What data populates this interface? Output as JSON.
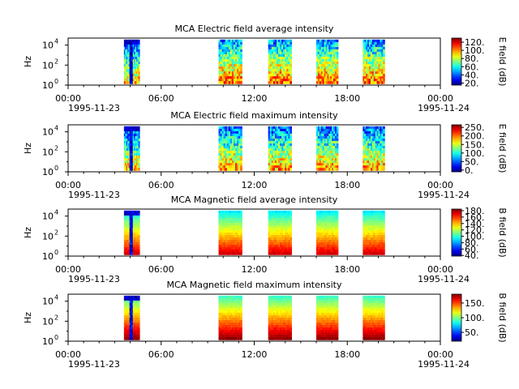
{
  "chart_data": [
    {
      "type": "heatmap",
      "title": "MCA  Electric field average intensity",
      "ylabel": "Hz",
      "colorbar_label": "E field (dB)",
      "colorbar_ticks": [
        "20.",
        "40.",
        "60.",
        "80.",
        "100.",
        "120."
      ],
      "colorbar_range": [
        15,
        130
      ],
      "y_ticks": [
        "10",
        "10",
        "10"
      ],
      "y_tick_exponents": [
        "0",
        "2",
        "4"
      ],
      "ylim_log10": [
        0,
        4.7
      ],
      "x_ticks": [
        "00:00",
        "06:00",
        "12:00",
        "18:00",
        "00:00"
      ],
      "x_date_left": "1995-11-23",
      "x_date_right": "1995-11-24",
      "xlim_hours": [
        0,
        24
      ],
      "segments": [
        {
          "start_hour": 3.6,
          "end_hour": 4.6,
          "mean_level": 65
        },
        {
          "start_hour": 9.7,
          "end_hour": 11.2,
          "mean_level": 75
        },
        {
          "start_hour": 12.9,
          "end_hour": 14.4,
          "mean_level": 75
        },
        {
          "start_hour": 16.0,
          "end_hour": 17.4,
          "mean_level": 75
        },
        {
          "start_hour": 19.0,
          "end_hour": 20.4,
          "mean_level": 75
        }
      ]
    },
    {
      "type": "heatmap",
      "title": "MCA  Electric field maximum intensity",
      "ylabel": "Hz",
      "colorbar_label": "E field (dB)",
      "colorbar_ticks": [
        "0.",
        "50.",
        "100.",
        "150.",
        "200.",
        "250."
      ],
      "colorbar_range": [
        -10,
        265
      ],
      "y_ticks": [
        "10",
        "10",
        "10"
      ],
      "y_tick_exponents": [
        "0",
        "2",
        "4"
      ],
      "ylim_log10": [
        0,
        4.7
      ],
      "x_ticks": [
        "00:00",
        "06:00",
        "12:00",
        "18:00",
        "00:00"
      ],
      "x_date_left": "1995-11-23",
      "x_date_right": "1995-11-24",
      "xlim_hours": [
        0,
        24
      ],
      "segments": [
        {
          "start_hour": 3.6,
          "end_hour": 4.6,
          "mean_level": 110
        },
        {
          "start_hour": 9.7,
          "end_hour": 11.2,
          "mean_level": 120
        },
        {
          "start_hour": 12.9,
          "end_hour": 14.4,
          "mean_level": 120
        },
        {
          "start_hour": 16.0,
          "end_hour": 17.4,
          "mean_level": 120
        },
        {
          "start_hour": 19.0,
          "end_hour": 20.4,
          "mean_level": 120
        }
      ]
    },
    {
      "type": "heatmap",
      "title": "MCA  Magnetic field average intensity",
      "ylabel": "Hz",
      "colorbar_label": "B field (dB)",
      "colorbar_ticks": [
        "40.",
        "60.",
        "80.",
        "100.",
        "120.",
        "140.",
        "160.",
        "180."
      ],
      "colorbar_range": [
        38,
        185
      ],
      "y_ticks": [
        "10",
        "10",
        "10"
      ],
      "y_tick_exponents": [
        "0",
        "2",
        "4"
      ],
      "ylim_log10": [
        0,
        4.7
      ],
      "x_ticks": [
        "00:00",
        "06:00",
        "12:00",
        "18:00",
        "00:00"
      ],
      "x_date_left": "1995-11-23",
      "x_date_right": "1995-11-24",
      "xlim_hours": [
        0,
        24
      ],
      "segments": [
        {
          "start_hour": 3.6,
          "end_hour": 4.6,
          "mean_level": 120
        },
        {
          "start_hour": 9.7,
          "end_hour": 11.2,
          "mean_level": 120
        },
        {
          "start_hour": 12.9,
          "end_hour": 14.4,
          "mean_level": 120
        },
        {
          "start_hour": 16.0,
          "end_hour": 17.4,
          "mean_level": 120
        },
        {
          "start_hour": 19.0,
          "end_hour": 20.4,
          "mean_level": 120
        }
      ]
    },
    {
      "type": "heatmap",
      "title": "MCA  Magnetic field maximum intensity",
      "ylabel": "Hz",
      "colorbar_label": "B field (dB)",
      "colorbar_ticks": [
        "50.",
        "100.",
        "150."
      ],
      "colorbar_range": [
        20,
        180
      ],
      "y_ticks": [
        "10",
        "10",
        "10"
      ],
      "y_tick_exponents": [
        "0",
        "2",
        "4"
      ],
      "ylim_log10": [
        0,
        4.7
      ],
      "x_ticks": [
        "00:00",
        "06:00",
        "12:00",
        "18:00",
        "00:00"
      ],
      "x_date_left": "1995-11-23",
      "x_date_right": "1995-11-24",
      "xlim_hours": [
        0,
        24
      ],
      "segments": [
        {
          "start_hour": 3.6,
          "end_hour": 4.6,
          "mean_level": 120
        },
        {
          "start_hour": 9.7,
          "end_hour": 11.2,
          "mean_level": 120
        },
        {
          "start_hour": 12.9,
          "end_hour": 14.4,
          "mean_level": 120
        },
        {
          "start_hour": 16.0,
          "end_hour": 17.4,
          "mean_level": 120
        },
        {
          "start_hour": 19.0,
          "end_hour": 20.4,
          "mean_level": 120
        }
      ]
    }
  ]
}
